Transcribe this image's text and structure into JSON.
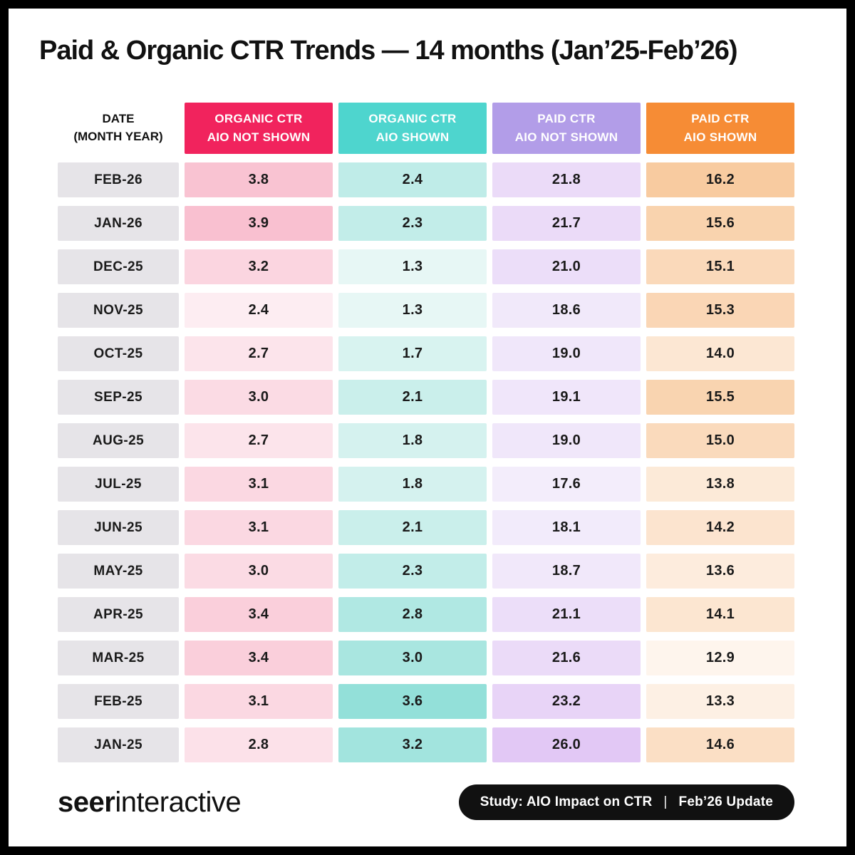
{
  "title": "Paid & Organic CTR Trends — 14 months (Jan’25-Feb’26)",
  "table": {
    "date_header_line1": "DATE",
    "date_header_line2": "(MONTH YEAR)",
    "columns": [
      {
        "line1": "ORGANIC CTR",
        "line2": "AIO NOT SHOWN",
        "header_color": "#F1235D",
        "cell_light": "#FDEDF2",
        "cell_strong": "#F9C0D0"
      },
      {
        "line1": "ORGANIC CTR",
        "line2": "AIO SHOWN",
        "header_color": "#4ED5CE",
        "cell_light": "#E7F7F5",
        "cell_strong": "#93E0D9"
      },
      {
        "line1": "PAID CTR",
        "line2": "AIO NOT SHOWN",
        "header_color": "#B29DE8",
        "cell_light": "#F3EDFB",
        "cell_strong": "#E2C8F5"
      },
      {
        "line1": "PAID CTR",
        "line2": "AIO SHOWN",
        "header_color": "#F68C35",
        "cell_light": "#FEF5ED",
        "cell_strong": "#F8CBA0"
      }
    ],
    "rows": [
      {
        "date": "FEB-26",
        "values": [
          "3.8",
          "2.4",
          "21.8",
          "16.2"
        ]
      },
      {
        "date": "JAN-26",
        "values": [
          "3.9",
          "2.3",
          "21.7",
          "15.6"
        ]
      },
      {
        "date": "DEC-25",
        "values": [
          "3.2",
          "1.3",
          "21.0",
          "15.1"
        ]
      },
      {
        "date": "NOV-25",
        "values": [
          "2.4",
          "1.3",
          "18.6",
          "15.3"
        ]
      },
      {
        "date": "OCT-25",
        "values": [
          "2.7",
          "1.7",
          "19.0",
          "14.0"
        ]
      },
      {
        "date": "SEP-25",
        "values": [
          "3.0",
          "2.1",
          "19.1",
          "15.5"
        ]
      },
      {
        "date": "AUG-25",
        "values": [
          "2.7",
          "1.8",
          "19.0",
          "15.0"
        ]
      },
      {
        "date": "JUL-25",
        "values": [
          "3.1",
          "1.8",
          "17.6",
          "13.8"
        ]
      },
      {
        "date": "JUN-25",
        "values": [
          "3.1",
          "2.1",
          "18.1",
          "14.2"
        ]
      },
      {
        "date": "MAY-25",
        "values": [
          "3.0",
          "2.3",
          "18.7",
          "13.6"
        ]
      },
      {
        "date": "APR-25",
        "values": [
          "3.4",
          "2.8",
          "21.1",
          "14.1"
        ]
      },
      {
        "date": "MAR-25",
        "values": [
          "3.4",
          "3.0",
          "21.6",
          "12.9"
        ]
      },
      {
        "date": "FEB-25",
        "values": [
          "3.1",
          "3.6",
          "23.2",
          "13.3"
        ]
      },
      {
        "date": "JAN-25",
        "values": [
          "2.8",
          "3.2",
          "26.0",
          "14.6"
        ]
      }
    ],
    "date_cell_color": "#E6E4E8"
  },
  "footer": {
    "logo_bold": "seer",
    "logo_light": "interactive",
    "badge_left": "Study: AIO Impact on CTR",
    "badge_separator": "|",
    "badge_right": "Feb’26 Update"
  },
  "chart_data": {
    "type": "table",
    "title": "Paid & Organic CTR Trends — 14 months (Jan’25-Feb’26)",
    "categories": [
      "FEB-26",
      "JAN-26",
      "DEC-25",
      "NOV-25",
      "OCT-25",
      "SEP-25",
      "AUG-25",
      "JUL-25",
      "JUN-25",
      "MAY-25",
      "APR-25",
      "MAR-25",
      "FEB-25",
      "JAN-25"
    ],
    "series": [
      {
        "name": "ORGANIC CTR AIO NOT SHOWN",
        "values": [
          3.8,
          3.9,
          3.2,
          2.4,
          2.7,
          3.0,
          2.7,
          3.1,
          3.1,
          3.0,
          3.4,
          3.4,
          3.1,
          2.8
        ]
      },
      {
        "name": "ORGANIC CTR AIO SHOWN",
        "values": [
          2.4,
          2.3,
          1.3,
          1.3,
          1.7,
          2.1,
          1.8,
          1.8,
          2.1,
          2.3,
          2.8,
          3.0,
          3.6,
          3.2
        ]
      },
      {
        "name": "PAID CTR AIO NOT SHOWN",
        "values": [
          21.8,
          21.7,
          21.0,
          18.6,
          19.0,
          19.1,
          19.0,
          17.6,
          18.1,
          18.7,
          21.1,
          21.6,
          23.2,
          26.0
        ]
      },
      {
        "name": "PAID CTR AIO SHOWN",
        "values": [
          16.2,
          15.6,
          15.1,
          15.3,
          14.0,
          15.5,
          15.0,
          13.8,
          14.2,
          13.6,
          14.1,
          12.9,
          13.3,
          14.6
        ]
      }
    ],
    "legend_position": "top",
    "grid": false
  }
}
